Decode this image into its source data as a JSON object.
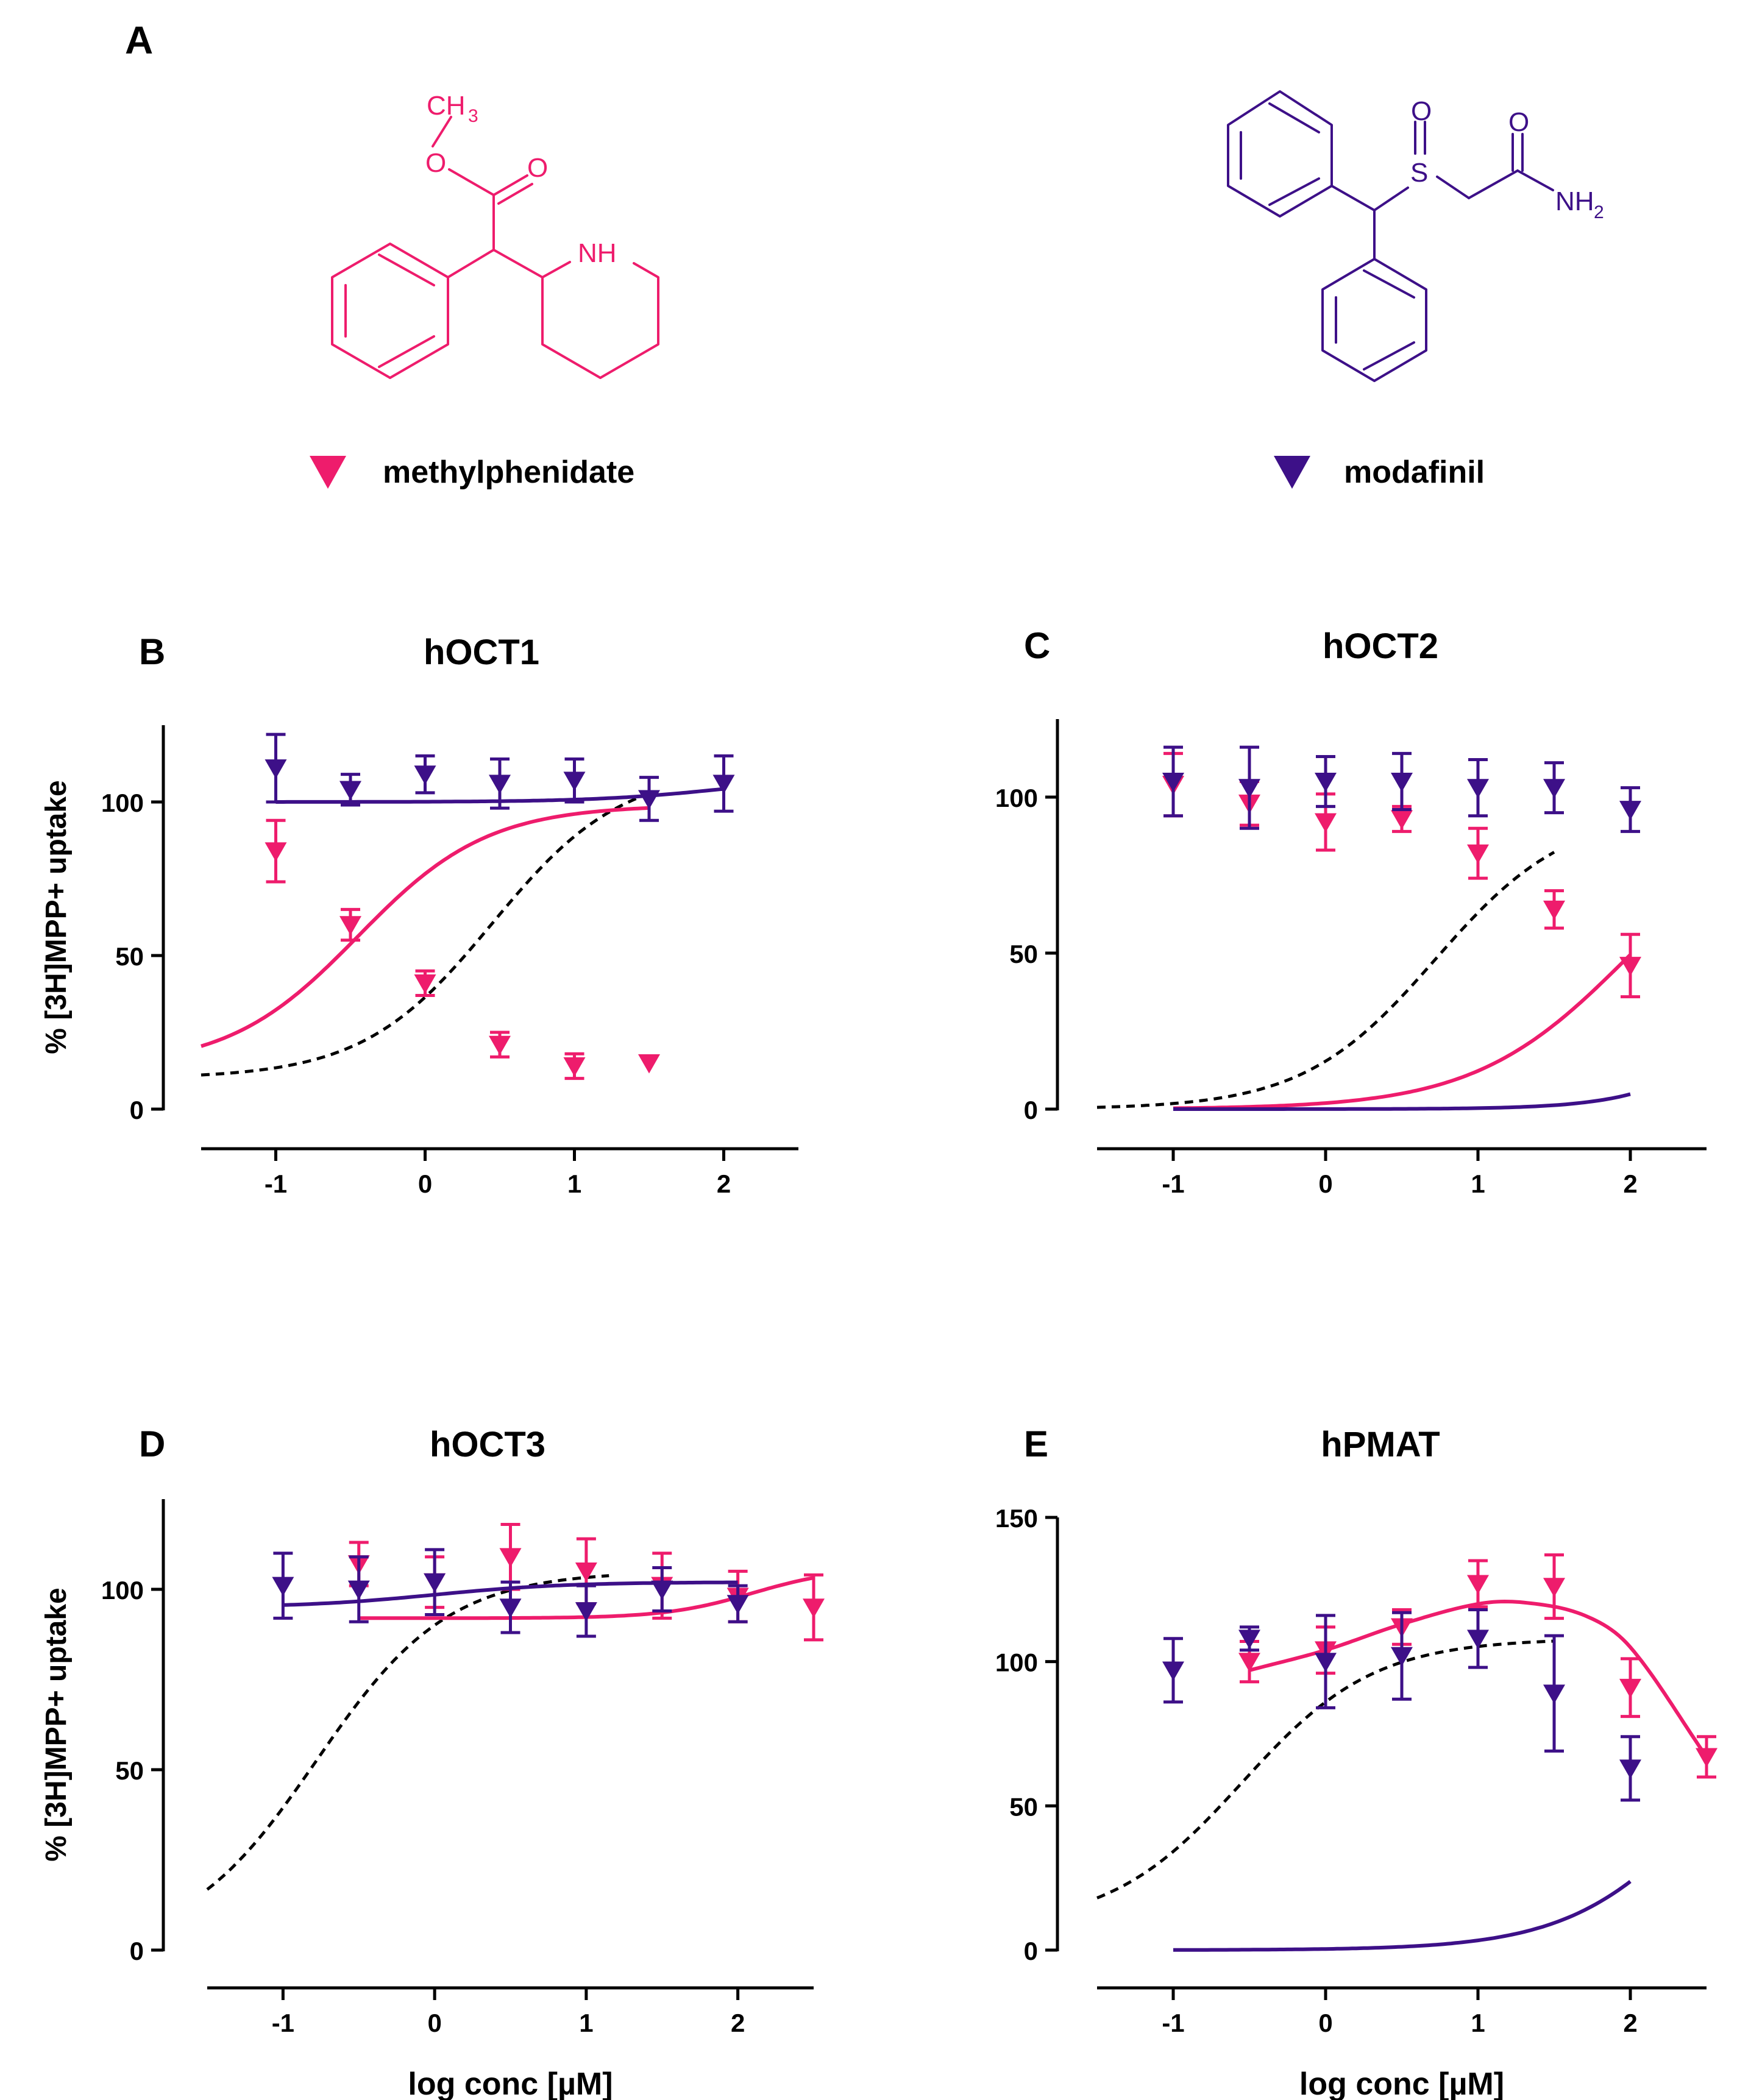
{
  "colors": {
    "methylphenidate": "#ee1c6c",
    "modafinil": "#3d1088",
    "reference": "#000000",
    "axis": "#000000"
  },
  "panelA": {
    "label": "A",
    "compounds": [
      {
        "key": "methylphenidate",
        "name": "methylphenidate",
        "atoms": {
          "methyl": "CH",
          "methyl_sub": "3",
          "ester_o": "O",
          "carbonyl_o": "O",
          "nh": "NH"
        }
      },
      {
        "key": "modafinil",
        "name": "modafinil",
        "atoms": {
          "s": "S",
          "so_o": "O",
          "amide_o": "O",
          "nh2": "NH",
          "nh2_sub": "2"
        }
      }
    ]
  },
  "chart_data": [
    {
      "type": "line",
      "panel": "B",
      "title": "hOCT1",
      "xlabel": "",
      "ylabel": "% [3H]MPP+ uptake",
      "xlim": [
        -1.5,
        2.5
      ],
      "ylim": [
        0,
        125
      ],
      "xticks": [
        -1,
        0,
        1,
        2
      ],
      "yticks": [
        0,
        50,
        100
      ],
      "series": [
        {
          "name": "methylphenidate",
          "color": "#ee1c6c",
          "x": [
            -1,
            -0.5,
            0,
            0.5,
            1,
            1.5
          ],
          "y": [
            84,
            60,
            41,
            21,
            14,
            15
          ],
          "err": [
            10,
            5,
            4,
            4,
            4,
            0
          ],
          "fit": {
            "model": "hill",
            "top": 99,
            "bottom": 13.5,
            "logic50": -0.45,
            "hill": -1,
            "xmin": -1.5,
            "xmax": 1.5
          }
        },
        {
          "name": "modafinil",
          "color": "#3d1088",
          "x": [
            -1,
            -0.5,
            0,
            0.5,
            1,
            1.5,
            2
          ],
          "y": [
            111,
            104,
            109,
            106,
            107,
            101,
            106
          ],
          "err": [
            11,
            5,
            6,
            8,
            7,
            7,
            9
          ],
          "fit": {
            "model": "hill",
            "top": 108.5,
            "bottom": 100,
            "logic50": 2,
            "hill": -1,
            "xmin": -1,
            "xmax": 2
          }
        }
      ],
      "reference_curve": {
        "style": "dashed",
        "top": 111,
        "bottom": 10,
        "logic50": 0.45,
        "hill": -1,
        "xmin": -1.5,
        "xmax": 1.5
      }
    },
    {
      "type": "line",
      "panel": "C",
      "title": "hOCT2",
      "xlabel": "",
      "ylabel": "",
      "xlim": [
        -1.5,
        2.5
      ],
      "ylim": [
        0,
        125
      ],
      "xticks": [
        -1,
        0,
        1,
        2
      ],
      "yticks": [
        0,
        50,
        100
      ],
      "series": [
        {
          "name": "methylphenidate",
          "color": "#ee1c6c",
          "x": [
            -1,
            -0.5,
            0,
            0.5,
            1,
            1.5,
            2
          ],
          "y": [
            104,
            98,
            92,
            93,
            82,
            64,
            46
          ],
          "err": [
            10,
            7,
            9,
            4,
            8,
            6,
            10
          ],
          "fit": {
            "model": "hill",
            "top": 99,
            "bottom": 0,
            "logic50": 2,
            "hill": -0.85,
            "xmin": -1,
            "xmax": 2
          }
        },
        {
          "name": "modafinil",
          "color": "#3d1088",
          "x": [
            -1,
            -0.5,
            0,
            0.5,
            1,
            1.5,
            2
          ],
          "y": [
            105,
            103,
            105,
            105,
            103,
            103,
            96
          ],
          "err": [
            11,
            13,
            8,
            9,
            9,
            8,
            7
          ],
          "fit": {
            "model": "hill",
            "top": 105,
            "bottom": 0,
            "logic50": 3.1,
            "hill": -1.2,
            "xmin": -1,
            "xmax": 2
          }
        }
      ],
      "reference_curve": {
        "style": "dashed",
        "top": 96,
        "bottom": 0,
        "logic50": 0.72,
        "hill": -1,
        "xmin": -1.5,
        "xmax": 1.5
      }
    },
    {
      "type": "line",
      "panel": "D",
      "title": "hOCT3",
      "xlabel": "log conc [µM]",
      "ylabel": "% [3H]MPP+ uptake",
      "xlim": [
        -1.5,
        2.5
      ],
      "ylim": [
        0,
        125
      ],
      "xticks": [
        -1,
        0,
        1,
        2
      ],
      "yticks": [
        0,
        50,
        100
      ],
      "series": [
        {
          "name": "methylphenidate",
          "color": "#ee1c6c",
          "x": [
            -0.5,
            0,
            0.5,
            1,
            1.5,
            2,
            2.5
          ],
          "y": [
            107,
            102,
            109,
            105,
            101,
            98,
            95
          ],
          "err": [
            6,
            7,
            9,
            9,
            9,
            7,
            9
          ],
          "fit": {
            "model": "hill",
            "top": 106,
            "bottom": 92,
            "logic50": 2.1,
            "hill": -1.5,
            "xmin": -0.5,
            "xmax": 2.5
          }
        },
        {
          "name": "modafinil",
          "color": "#3d1088",
          "x": [
            -1,
            -0.5,
            0,
            0.5,
            1,
            1.5,
            2
          ],
          "y": [
            101,
            100,
            102,
            95,
            94,
            100,
            96
          ],
          "err": [
            9,
            9,
            9,
            7,
            7,
            6,
            5
          ],
          "fit": {
            "model": "hill",
            "top": 102,
            "bottom": 95,
            "logic50": 0,
            "hill": -1,
            "xmin": -1,
            "xmax": 2
          }
        }
      ],
      "reference_curve": {
        "style": "dashed",
        "top": 105,
        "bottom": 0,
        "logic50": -0.78,
        "hill": -1,
        "xmin": -1.5,
        "xmax": 1.15
      }
    },
    {
      "type": "line",
      "panel": "E",
      "title": "hPMAT",
      "xlabel": "log conc [µM]",
      "ylabel": "",
      "xlim": [
        -1.5,
        2.5
      ],
      "ylim": [
        0,
        150
      ],
      "xticks": [
        -1,
        0,
        1,
        2
      ],
      "yticks": [
        0,
        50,
        100,
        150
      ],
      "series": [
        {
          "name": "methylphenidate",
          "color": "#ee1c6c",
          "x": [
            -0.5,
            0,
            0.5,
            1,
            1.5,
            2,
            2.5
          ],
          "y": [
            100,
            104,
            112,
            127,
            126,
            91,
            67
          ],
          "err": [
            7,
            8,
            6,
            8,
            11,
            10,
            7
          ],
          "fit": {
            "model": "bellpoly",
            "points": [
              [
                -0.5,
                97
              ],
              [
                0,
                104
              ],
              [
                0.5,
                113
              ],
              [
                1,
                120
              ],
              [
                1.3,
                120.5
              ],
              [
                1.7,
                116
              ],
              [
                2,
                105
              ],
              [
                2.5,
                67
              ]
            ],
            "xmin": -0.5,
            "xmax": 2.5
          }
        },
        {
          "name": "modafinil",
          "color": "#3d1088",
          "x": [
            -1,
            -0.5,
            0,
            0.5,
            1,
            1.5,
            2
          ],
          "y": [
            97,
            108,
            100,
            102,
            108,
            89,
            63
          ],
          "err": [
            11,
            4,
            16,
            15,
            10,
            20,
            11
          ],
          "fit": {
            "model": "hill",
            "top": 103,
            "bottom": 0,
            "logic50": 2.55,
            "hill": -0.95,
            "xmin": -1,
            "xmax": 2
          }
        }
      ],
      "reference_curve": {
        "style": "dashed",
        "top": 108,
        "bottom": 8,
        "logic50": -0.55,
        "hill": -1,
        "xmin": -1.5,
        "xmax": 1.5
      }
    }
  ]
}
